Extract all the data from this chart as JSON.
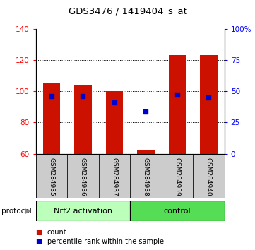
{
  "title": "GDS3476 / 1419404_s_at",
  "samples": [
    "GSM284935",
    "GSM284936",
    "GSM284937",
    "GSM284938",
    "GSM284939",
    "GSM284940"
  ],
  "counts": [
    105,
    104,
    100,
    62,
    123,
    123
  ],
  "percentile_ranks_left_axis": [
    97,
    97,
    93,
    87,
    98,
    96
  ],
  "ylim_left": [
    60,
    140
  ],
  "ylim_right": [
    0,
    100
  ],
  "yticks_left": [
    60,
    80,
    100,
    120,
    140
  ],
  "yticks_right": [
    0,
    25,
    50,
    75,
    100
  ],
  "ytick_labels_right": [
    "0",
    "25",
    "50",
    "75",
    "100%"
  ],
  "groups": [
    {
      "label": "Nrf2 activation",
      "indices": [
        0,
        1,
        2
      ],
      "color": "#bbffbb"
    },
    {
      "label": "control",
      "indices": [
        3,
        4,
        5
      ],
      "color": "#55dd55"
    }
  ],
  "bar_color": "#cc1100",
  "percentile_color": "#0000cc",
  "bar_width": 0.55,
  "bar_bottom": 60,
  "protocol_label": "protocol",
  "legend_count_label": "count",
  "legend_percentile_label": "percentile rank within the sample",
  "bg_color": "#ffffff",
  "x_label_bg": "#cccccc"
}
